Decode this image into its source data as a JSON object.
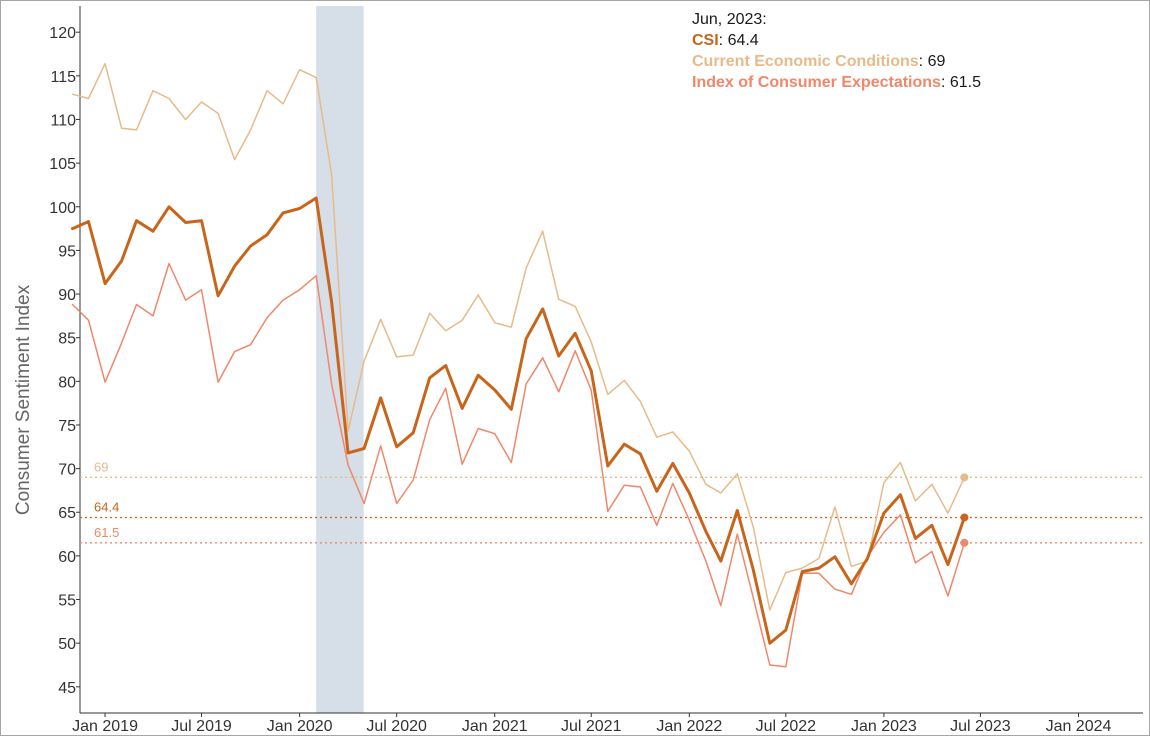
{
  "chart_data": {
    "type": "line",
    "ylabel": "Consumer Sentiment Index",
    "ylim": [
      42,
      123
    ],
    "yticks": [
      45,
      50,
      55,
      60,
      65,
      70,
      75,
      80,
      85,
      90,
      95,
      100,
      105,
      110,
      115,
      120
    ],
    "xlim": [
      "2018-11-15",
      "2024-05-01"
    ],
    "xticks": [
      {
        "date": "2019-01-01",
        "label": "Jan 2019"
      },
      {
        "date": "2019-07-01",
        "label": "Jul 2019"
      },
      {
        "date": "2020-01-01",
        "label": "Jan 2020"
      },
      {
        "date": "2020-07-01",
        "label": "Jul 2020"
      },
      {
        "date": "2021-01-01",
        "label": "Jan 2021"
      },
      {
        "date": "2021-07-01",
        "label": "Jul 2021"
      },
      {
        "date": "2022-01-01",
        "label": "Jan 2022"
      },
      {
        "date": "2022-07-01",
        "label": "Jul 2022"
      },
      {
        "date": "2023-01-01",
        "label": "Jan 2023"
      },
      {
        "date": "2023-07-01",
        "label": "Jul 2023"
      },
      {
        "date": "2024-01-01",
        "label": "Jan 2024"
      }
    ],
    "x": [
      "2018-11",
      "2018-12",
      "2019-01",
      "2019-02",
      "2019-03",
      "2019-04",
      "2019-05",
      "2019-06",
      "2019-07",
      "2019-08",
      "2019-09",
      "2019-10",
      "2019-11",
      "2019-12",
      "2020-01",
      "2020-02",
      "2020-03",
      "2020-04",
      "2020-05",
      "2020-06",
      "2020-07",
      "2020-08",
      "2020-09",
      "2020-10",
      "2020-11",
      "2020-12",
      "2021-01",
      "2021-02",
      "2021-03",
      "2021-04",
      "2021-05",
      "2021-06",
      "2021-07",
      "2021-08",
      "2021-09",
      "2021-10",
      "2021-11",
      "2021-12",
      "2022-01",
      "2022-02",
      "2022-03",
      "2022-04",
      "2022-05",
      "2022-06",
      "2022-07",
      "2022-08",
      "2022-09",
      "2022-10",
      "2022-11",
      "2022-12",
      "2023-01",
      "2023-02",
      "2023-03",
      "2023-04",
      "2023-05",
      "2023-06"
    ],
    "recession_band": {
      "start": "2020-02-01",
      "end": "2020-04-30"
    },
    "series": [
      {
        "name": "Current Economic Conditions",
        "color": "#e6bb8a",
        "stroke": 1.5,
        "values": [
          112.9,
          112.4,
          116.4,
          109.0,
          108.8,
          113.3,
          112.4,
          110.0,
          112.0,
          110.7,
          105.4,
          108.8,
          113.3,
          111.8,
          115.7,
          114.8,
          103.7,
          74.3,
          82.3,
          87.1,
          82.8,
          83.0,
          87.8,
          85.8,
          87.0,
          89.9,
          86.7,
          86.2,
          93.0,
          97.2,
          89.4,
          88.6,
          84.5,
          78.5,
          80.1,
          77.7,
          73.6,
          74.2,
          72.0,
          68.2,
          67.2,
          69.4,
          63.3,
          53.8,
          58.1,
          58.6,
          59.7,
          65.6,
          58.8,
          59.4,
          68.4,
          70.7,
          66.3,
          68.2,
          64.9,
          69.0
        ]
      },
      {
        "name": "CSI",
        "color": "#c8651b",
        "stroke": 3,
        "values": [
          97.5,
          98.3,
          91.2,
          93.8,
          98.4,
          97.2,
          100.0,
          98.2,
          98.4,
          89.8,
          93.2,
          95.5,
          96.8,
          99.3,
          99.8,
          101.0,
          89.1,
          71.8,
          72.3,
          78.1,
          72.5,
          74.1,
          80.4,
          81.8,
          76.9,
          80.7,
          79.0,
          76.8,
          84.9,
          88.3,
          82.9,
          85.5,
          81.2,
          70.3,
          72.8,
          71.7,
          67.4,
          70.6,
          67.2,
          62.8,
          59.4,
          65.2,
          58.4,
          50.0,
          51.5,
          58.2,
          58.6,
          59.9,
          56.8,
          59.7,
          64.9,
          67.0,
          62.0,
          63.5,
          59.0,
          64.4
        ]
      },
      {
        "name": "Index of Consumer Expectations",
        "color": "#f0876a",
        "stroke": 1.5,
        "values": [
          88.8,
          87.0,
          79.9,
          84.4,
          88.8,
          87.5,
          93.5,
          89.3,
          90.5,
          79.9,
          83.4,
          84.2,
          87.3,
          89.3,
          90.5,
          92.1,
          79.7,
          70.4,
          66.0,
          72.6,
          66.0,
          68.7,
          75.6,
          79.2,
          70.5,
          74.6,
          74.0,
          70.7,
          79.7,
          82.7,
          78.8,
          83.5,
          79.0,
          65.1,
          68.1,
          67.9,
          63.5,
          68.3,
          64.1,
          59.4,
          54.3,
          62.5,
          55.2,
          47.5,
          47.3,
          58.0,
          58.0,
          56.2,
          55.6,
          59.9,
          62.7,
          64.7,
          59.2,
          60.5,
          55.4,
          61.5
        ]
      }
    ],
    "reference_lines": [
      {
        "value": 69,
        "label": "69",
        "color": "#e6bb8a"
      },
      {
        "value": 64.4,
        "label": "64.4",
        "color": "#c8651b"
      },
      {
        "value": 61.5,
        "label": "61.5",
        "color": "#f0876a"
      }
    ],
    "tooltip": {
      "date": "Jun, 2023:",
      "rows": [
        {
          "name": "CSI",
          "value": "64.4",
          "color": "#c8651b"
        },
        {
          "name": "Current Economic Conditions",
          "value": "69",
          "color": "#e6bb8a"
        },
        {
          "name": "Index of Consumer Expectations",
          "value": "61.5",
          "color": "#f0876a"
        }
      ]
    }
  }
}
